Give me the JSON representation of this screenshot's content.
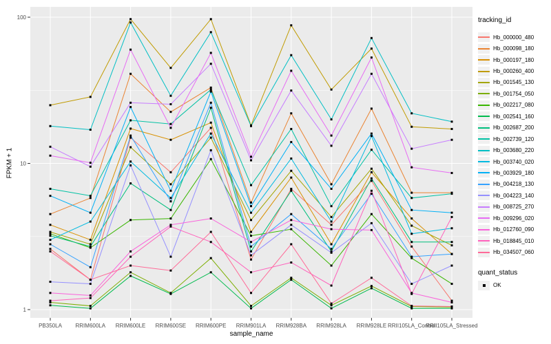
{
  "figure": {
    "background": "#FFFFFF",
    "panel_bg": "#EBEBEB",
    "grid_color": "#FFFFFF",
    "axis_text_color": "#4D4D4D",
    "tick_color": "#333333",
    "point_color": "#000000",
    "legend_key_bg": "#F0F0F0"
  },
  "axes": {
    "y_title": "FPKM + 1",
    "x_title": "sample_name",
    "y_tick_labels": [
      "100",
      "10",
      "1"
    ],
    "y_tick_values": [
      100,
      10,
      1
    ]
  },
  "legend": {
    "tracking_title": "tracking_id",
    "quant_title": "quant_status",
    "quant_items": [
      {
        "label": "OK"
      }
    ]
  },
  "chart_data": {
    "type": "line",
    "xlabel": "sample_name",
    "ylabel": "FPKM + 1",
    "y_scale": "log10",
    "ylim": [
      1,
      100
    ],
    "grid": true,
    "legend_position": "right",
    "point_marker": "black-square",
    "x_categories": [
      "PB350LA",
      "RRIM600LA",
      "RRIM600LE",
      "RRIM600SE",
      "RRIM600PE",
      "RRIM901LA",
      "RRIM928BA",
      "RRIM928LA",
      "RRIM928LE",
      "RRII105LA_Control",
      "RRII105LA_Stressed"
    ],
    "series": [
      {
        "name": "Hb_000000_480",
        "color": "#F8766D",
        "values": [
          2.6,
          1.6,
          15,
          8.7,
          17.5,
          2.2,
          6.7,
          3.8,
          7.6,
          2.7,
          1.15
        ]
      },
      {
        "name": "Hb_000098_180",
        "color": "#EA8331",
        "values": [
          4.5,
          5.8,
          41,
          22.5,
          33,
          5.4,
          22,
          7.2,
          23.7,
          6.3,
          6.3
        ]
      },
      {
        "name": "Hb_000197_180",
        "color": "#D89000",
        "values": [
          3.8,
          3.0,
          17.3,
          14.5,
          19,
          3.4,
          8.0,
          2.8,
          8.7,
          4.2,
          2.4
        ]
      },
      {
        "name": "Hb_000260_400",
        "color": "#C09B00",
        "values": [
          25,
          28.5,
          97,
          45,
          97,
          18.2,
          88,
          32,
          61,
          17.8,
          17.2
        ]
      },
      {
        "name": "Hb_001545_130",
        "color": "#A3A500",
        "values": [
          3.4,
          2.8,
          12.9,
          7.2,
          15,
          4.1,
          8.9,
          4.3,
          9.2,
          3.75,
          2.75
        ]
      },
      {
        "name": "Hb_001754_050",
        "color": "#7CAE00",
        "values": [
          1.12,
          1.06,
          1.8,
          1.3,
          2.25,
          1.06,
          1.65,
          1.07,
          1.45,
          1.05,
          1.04
        ]
      },
      {
        "name": "Hb_002217_080",
        "color": "#39B600",
        "values": [
          3.3,
          2.65,
          4.1,
          4.2,
          10.7,
          3.2,
          3.55,
          2.0,
          4.5,
          2.25,
          1.5
        ]
      },
      {
        "name": "Hb_002541_160",
        "color": "#00BB4E",
        "values": [
          1.07,
          1.02,
          1.7,
          1.28,
          1.8,
          1.02,
          1.6,
          1.02,
          1.4,
          1.02,
          1.02
        ]
      },
      {
        "name": "Hb_002687_200",
        "color": "#00BF7D",
        "values": [
          3.2,
          2.7,
          7.3,
          4.8,
          24,
          2.5,
          6.5,
          2.5,
          7.9,
          2.9,
          2.9
        ]
      },
      {
        "name": "Hb_002739_120",
        "color": "#00C1A3",
        "values": [
          6.7,
          6.0,
          19.7,
          18.6,
          32,
          7.1,
          17.2,
          5.1,
          12.4,
          5.8,
          6.2
        ]
      },
      {
        "name": "Hb_003680_220",
        "color": "#00BFC4",
        "values": [
          18,
          17,
          92,
          29,
          79,
          18,
          55,
          20,
          72,
          22,
          19.3
        ]
      },
      {
        "name": "Hb_003740_020",
        "color": "#00BAE0",
        "values": [
          3.0,
          4.0,
          10.3,
          5.8,
          16,
          4.6,
          10.8,
          4.0,
          15.4,
          3.3,
          3.6
        ]
      },
      {
        "name": "Hb_003929_180",
        "color": "#00B0F6",
        "values": [
          6.0,
          4.6,
          24.3,
          6.5,
          31,
          5.1,
          14,
          6.7,
          16,
          4.8,
          4.6
        ]
      },
      {
        "name": "Hb_004218_130",
        "color": "#35A2FF",
        "values": [
          2.8,
          1.95,
          15.5,
          5.5,
          26,
          2.7,
          4.5,
          2.6,
          6.2,
          2.3,
          2.4
        ]
      },
      {
        "name": "Hb_004223_140",
        "color": "#9590FF",
        "values": [
          1.55,
          1.5,
          9.7,
          2.3,
          12.3,
          2.35,
          3.8,
          2.45,
          3.9,
          1.5,
          2.0
        ]
      },
      {
        "name": "Hb_008725_270",
        "color": "#C77CFF",
        "values": [
          13,
          9.5,
          26,
          25.4,
          48,
          10.5,
          31.5,
          13.2,
          41,
          12.6,
          14.5
        ]
      },
      {
        "name": "Hb_009296_020",
        "color": "#E76BF3",
        "values": [
          11.3,
          10.1,
          60,
          17.5,
          57,
          11.1,
          43,
          15.5,
          53,
          9.4,
          8.6
        ]
      },
      {
        "name": "Hb_012760_090",
        "color": "#FA62DB",
        "values": [
          1.3,
          1.25,
          2.5,
          3.8,
          4.2,
          2.9,
          4.1,
          3.55,
          3.5,
          1.3,
          1.12
        ]
      },
      {
        "name": "Hb_018845_010",
        "color": "#FF62BC",
        "values": [
          1.15,
          1.2,
          2.3,
          3.7,
          2.9,
          1.8,
          2.1,
          1.46,
          6.5,
          1.28,
          4.3
        ]
      },
      {
        "name": "Hb_034507_060",
        "color": "#FF6A98",
        "values": [
          2.5,
          1.6,
          2.0,
          1.85,
          3.4,
          1.3,
          2.8,
          1.1,
          1.65,
          1.06,
          1.05
        ]
      }
    ]
  }
}
